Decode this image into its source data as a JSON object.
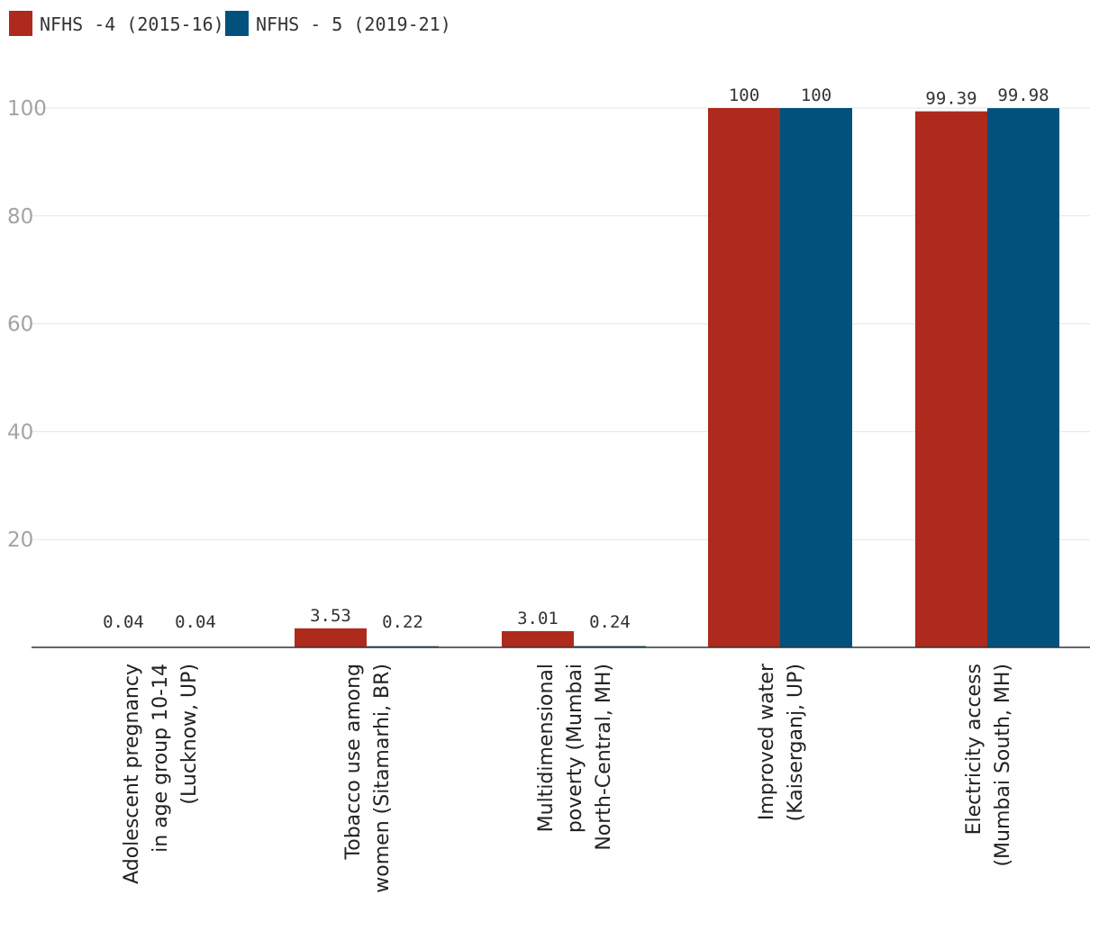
{
  "chart_data": {
    "type": "bar",
    "title": "",
    "xlabel": "",
    "ylabel": "",
    "ylim": [
      0,
      100
    ],
    "yticks": [
      20,
      40,
      60,
      80,
      100
    ],
    "grid": true,
    "legend_position": "top-left",
    "categories": [
      [
        "Adolescent pregnancy",
        "in age group 10-14",
        "(Lucknow, UP)"
      ],
      [
        "Tobacco use among",
        "women (Sitamarhi, BR)"
      ],
      [
        "Multidimensional",
        "poverty (Mumbai",
        "North-Central, MH)"
      ],
      [
        "Improved water",
        "(Kaiserganj, UP)"
      ],
      [
        "Electricity access",
        "(Mumbai South, MH)"
      ]
    ],
    "series": [
      {
        "name": "NFHS -4 (2015-16)",
        "color": "#ae2a1c",
        "values": [
          0.04,
          3.53,
          3.01,
          100,
          99.39
        ],
        "labels": [
          "0.04",
          "3.53",
          "3.01",
          "100",
          "99.39"
        ]
      },
      {
        "name": "NFHS - 5 (2019-21)",
        "color": "#00527c",
        "values": [
          0.04,
          0.22,
          0.24,
          100,
          99.98
        ],
        "labels": [
          "0.04",
          "0.22",
          "0.24",
          "100",
          "99.98"
        ]
      }
    ]
  }
}
